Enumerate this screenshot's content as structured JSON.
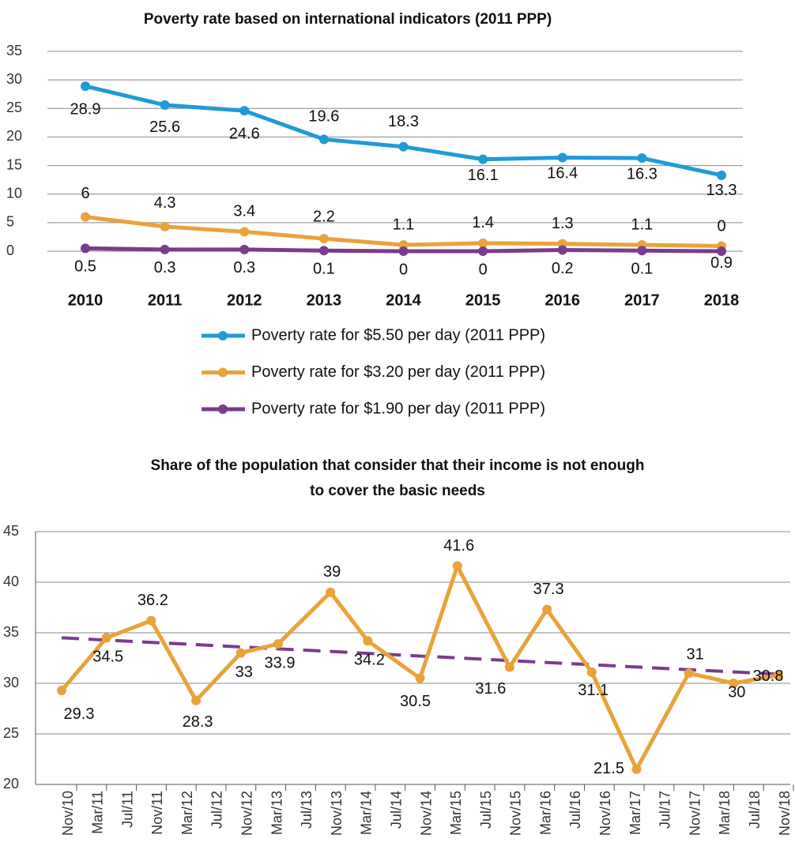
{
  "chart_data": [
    {
      "type": "line",
      "title": "Poverty rate based on international indicators (2011 PPP)",
      "categories": [
        "2010",
        "2011",
        "2012",
        "2013",
        "2014",
        "2015",
        "2016",
        "2017",
        "2018"
      ],
      "series": [
        {
          "name": "Poverty rate for $5.50 per day (2011 PPP)",
          "color": "#1f9bd7",
          "values": [
            28.9,
            25.6,
            24.6,
            19.6,
            18.3,
            16.1,
            16.4,
            16.3,
            13.3
          ]
        },
        {
          "name": "Poverty rate for $3.20 per day (2011 PPP)",
          "color": "#e8a33a",
          "values": [
            6,
            4.3,
            3.4,
            2.2,
            1.1,
            1.4,
            1.3,
            1.1,
            0.9
          ]
        },
        {
          "name": "Poverty rate for $1.90 per day (2011 PPP)",
          "color": "#7a3c8c",
          "values": [
            0.5,
            0.3,
            0.3,
            0.1,
            0,
            0,
            0.2,
            0.1,
            0
          ]
        }
      ],
      "ylim": [
        0,
        35
      ],
      "yticks": [
        0,
        5,
        10,
        15,
        20,
        25,
        30,
        35
      ],
      "grid": true,
      "legend": "bottom"
    },
    {
      "type": "line",
      "title": "Share of the population that consider that their income is not enough to cover the basic needs",
      "x": [
        0,
        6,
        12,
        18,
        24,
        29,
        36,
        41,
        48,
        53,
        60,
        65,
        71,
        77,
        84,
        90,
        96
      ],
      "series": [
        {
          "color": "#e8a33a",
          "values": [
            29.3,
            34.5,
            36.2,
            28.3,
            33,
            33.9,
            39,
            34.2,
            30.5,
            41.6,
            31.6,
            37.3,
            31.1,
            21.5,
            31,
            30,
            30.8
          ]
        }
      ],
      "trend": {
        "color": "#7a3c8c",
        "x": [
          0,
          96
        ],
        "values": [
          34.5,
          30.9
        ]
      },
      "xlim": [
        0,
        96
      ],
      "xticks": [
        {
          "value": 0,
          "label": "Nov/10"
        },
        {
          "value": 4,
          "label": "Mar/11"
        },
        {
          "value": 8,
          "label": "Jul/11"
        },
        {
          "value": 12,
          "label": "Nov/11"
        },
        {
          "value": 16,
          "label": "Mar/12"
        },
        {
          "value": 20,
          "label": "Jul/12"
        },
        {
          "value": 24,
          "label": "Nov/12"
        },
        {
          "value": 28,
          "label": "Mar/13"
        },
        {
          "value": 32,
          "label": "Jul/13"
        },
        {
          "value": 36,
          "label": "Nov/13"
        },
        {
          "value": 40,
          "label": "Mar/14"
        },
        {
          "value": 44,
          "label": "Jul/14"
        },
        {
          "value": 48,
          "label": "Nov/14"
        },
        {
          "value": 52,
          "label": "Mar/15"
        },
        {
          "value": 56,
          "label": "Jul/15"
        },
        {
          "value": 60,
          "label": "Nov/15"
        },
        {
          "value": 64,
          "label": "Mar/16"
        },
        {
          "value": 68,
          "label": "Jul/16"
        },
        {
          "value": 72,
          "label": "Nov/16"
        },
        {
          "value": 76,
          "label": "Mar/17"
        },
        {
          "value": 80,
          "label": "Jul/17"
        },
        {
          "value": 84,
          "label": "Nov/17"
        },
        {
          "value": 88,
          "label": "Mar/18"
        },
        {
          "value": 92,
          "label": "Jul/18"
        },
        {
          "value": 96,
          "label": "Nov/18"
        }
      ],
      "ylim": [
        20,
        45
      ],
      "yticks": [
        20,
        25,
        30,
        35,
        40,
        45
      ],
      "grid": true
    }
  ]
}
